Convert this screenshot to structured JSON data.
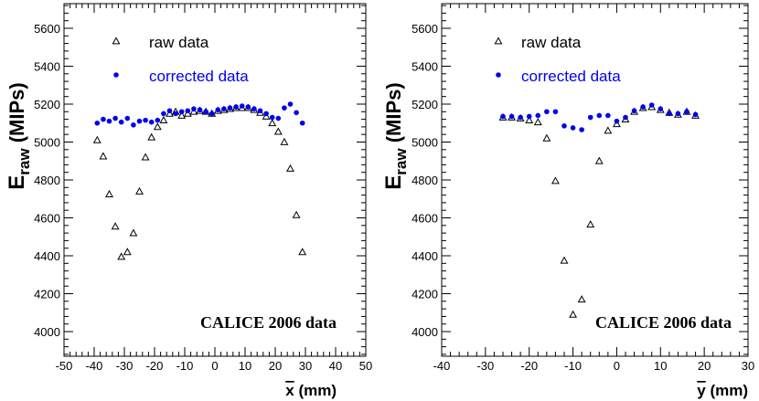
{
  "chart_data": [
    {
      "type": "scatter",
      "ylabel_main": "E",
      "ylabel_sub": "raw",
      "ylabel_units": "(MIPs)",
      "xlabel_var": "x",
      "xlabel_units": " (mm)",
      "xlim": [
        -50,
        50
      ],
      "ylim": [
        3870,
        5730
      ],
      "xticks": [
        -50,
        -40,
        -30,
        -20,
        -10,
        0,
        10,
        20,
        30,
        40,
        50
      ],
      "yticks": [
        4000,
        4200,
        4400,
        4600,
        4800,
        5000,
        5200,
        5400,
        5600
      ],
      "annotation": "CALICE 2006 data",
      "legend": {
        "raw_label": "raw data",
        "corrected_label": "corrected data"
      },
      "series": [
        {
          "name": "raw data",
          "marker": "open-triangle",
          "color": "#000000",
          "x": [
            -39,
            -37,
            -35,
            -33,
            -31,
            -29,
            -27,
            -25,
            -23,
            -21,
            -19,
            -17,
            -15,
            -13,
            -11,
            -9,
            -7,
            -5,
            -3,
            -1,
            1,
            3,
            5,
            7,
            9,
            11,
            13,
            15,
            17,
            19,
            21,
            23,
            25,
            27,
            29
          ],
          "y": [
            5010,
            4925,
            4725,
            4555,
            4395,
            4420,
            4520,
            4740,
            4920,
            5025,
            5080,
            5115,
            5150,
            5160,
            5140,
            5150,
            5160,
            5165,
            5160,
            5150,
            5165,
            5170,
            5175,
            5180,
            5180,
            5180,
            5170,
            5155,
            5135,
            5100,
            5055,
            5000,
            4860,
            4615,
            4420
          ]
        },
        {
          "name": "corrected data",
          "marker": "filled-circle",
          "color": "#0000ee",
          "x": [
            -39,
            -37,
            -35,
            -33,
            -31,
            -29,
            -27,
            -25,
            -23,
            -21,
            -19,
            -17,
            -15,
            -13,
            -11,
            -9,
            -7,
            -5,
            -3,
            -1,
            1,
            3,
            5,
            7,
            9,
            11,
            13,
            15,
            17,
            19,
            21,
            23,
            25,
            27,
            29
          ],
          "y": [
            5100,
            5120,
            5110,
            5125,
            5105,
            5125,
            5090,
            5110,
            5115,
            5105,
            5115,
            5150,
            5165,
            5150,
            5160,
            5165,
            5175,
            5170,
            5160,
            5150,
            5170,
            5175,
            5180,
            5185,
            5190,
            5185,
            5175,
            5165,
            5150,
            5130,
            5125,
            5180,
            5200,
            5155,
            5100
          ]
        }
      ]
    },
    {
      "type": "scatter",
      "ylabel_main": "E",
      "ylabel_sub": "raw",
      "ylabel_units": "(MIPs)",
      "xlabel_var": "y",
      "xlabel_units": " (mm)",
      "xlim": [
        -40,
        30
      ],
      "ylim": [
        3870,
        5730
      ],
      "xticks": [
        -40,
        -30,
        -20,
        -10,
        0,
        10,
        20,
        30
      ],
      "yticks": [
        4000,
        4200,
        4400,
        4600,
        4800,
        5000,
        5200,
        5400,
        5600
      ],
      "annotation": "CALICE 2006 data",
      "legend": {
        "raw_label": "raw data",
        "corrected_label": "corrected data"
      },
      "series": [
        {
          "name": "raw data",
          "marker": "open-triangle",
          "color": "#000000",
          "x": [
            -26,
            -24,
            -22,
            -20,
            -18,
            -16,
            -14,
            -12,
            -10,
            -8,
            -6,
            -4,
            -2,
            0,
            2,
            4,
            6,
            8,
            10,
            12,
            14,
            16,
            18
          ],
          "y": [
            5130,
            5130,
            5125,
            5115,
            5105,
            5020,
            4795,
            4375,
            4090,
            4170,
            4565,
            4900,
            5060,
            5095,
            5120,
            5160,
            5180,
            5185,
            5170,
            5155,
            5145,
            5160,
            5140
          ]
        },
        {
          "name": "corrected data",
          "marker": "filled-circle",
          "color": "#0000ee",
          "x": [
            -26,
            -24,
            -22,
            -20,
            -18,
            -16,
            -14,
            -12,
            -10,
            -8,
            -6,
            -4,
            -2,
            0,
            2,
            4,
            6,
            8,
            10,
            12,
            14,
            16,
            18
          ],
          "y": [
            5135,
            5135,
            5130,
            5135,
            5140,
            5160,
            5160,
            5085,
            5075,
            5065,
            5130,
            5140,
            5140,
            5110,
            5130,
            5165,
            5185,
            5195,
            5175,
            5150,
            5150,
            5160,
            5145
          ]
        }
      ]
    }
  ]
}
